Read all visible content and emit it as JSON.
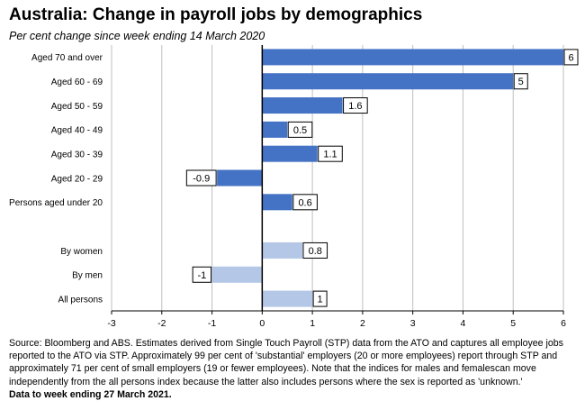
{
  "chart_data": {
    "type": "bar",
    "orientation": "horizontal",
    "title": "Australia:  Change in payroll jobs by demographics",
    "subtitle": "Per cent change since week ending 14 March 2020",
    "xlim": [
      -3,
      6
    ],
    "xticks": [
      -3,
      -2,
      -1,
      0,
      1,
      2,
      3,
      4,
      5,
      6
    ],
    "grid": "vertical",
    "legend": "none",
    "groups": [
      {
        "color": "#4472C4",
        "categories": [
          "Aged 70 and over",
          "Aged 60 - 69",
          "Aged 50 - 59",
          "Aged 40 - 49",
          "Aged 30 - 39",
          "Aged 20 - 29",
          "Persons aged under 20"
        ],
        "values": [
          6,
          5,
          1.6,
          0.5,
          1.1,
          -0.9,
          0.6
        ],
        "labels": [
          "6",
          "5",
          "1.6",
          "0.5",
          "1.1",
          "-0.9",
          "0.6"
        ]
      },
      {
        "color": "#B4C7E7",
        "categories": [
          "By women",
          "By men",
          "All persons"
        ],
        "values": [
          0.8,
          -1,
          1
        ],
        "labels": [
          "0.8",
          "-1",
          "1"
        ]
      }
    ]
  },
  "source": {
    "text": "Source: Bloomberg and ABS.  Estimates derived from Single Touch Payroll (STP) data from the ATO and captures all employee jobs reported to the ATO via STP.  Approximately 99 per cent of 'substantial' employers (20 or more employees) report through STP and approximately 71 per cent of small employers (19 or fewer employees).  Note that the indices for males and femalescan move independently from the all persons index because the latter also includes persons where the sex is reported as 'unknown.'",
    "note": "Data to week ending 27 March 2021."
  }
}
